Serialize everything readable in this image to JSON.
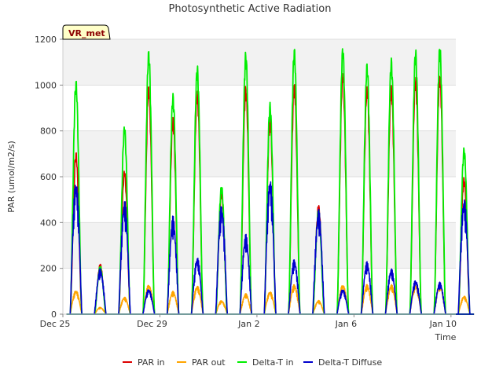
{
  "chart_data": {
    "type": "line",
    "title": "Photosynthetic Active Radiation",
    "xlabel": "Time",
    "ylabel": "PAR (umol/m2/s)",
    "xlim_days": [
      0,
      16.2
    ],
    "ylim": [
      0,
      1200
    ],
    "yticks": [
      0,
      200,
      400,
      600,
      800,
      1000,
      1200
    ],
    "xticks": [
      {
        "label": "Dec 25",
        "day": 0
      },
      {
        "label": "Dec 29",
        "day": 4
      },
      {
        "label": "Jan 2",
        "day": 8
      },
      {
        "label": "Jan 6",
        "day": 12
      },
      {
        "label": "Jan 10",
        "day": 16
      }
    ],
    "alt_bands": true,
    "site_tag": "VR_met",
    "legend_position": "bottom",
    "series": [
      {
        "name": "PAR in",
        "color": "#dd0000",
        "daily_peaks": [
          710,
          220,
          630,
          1000,
          860,
          980,
          540,
          1000,
          860,
          1010,
          480,
          1060,
          1000,
          1000,
          1040,
          1060,
          600
        ]
      },
      {
        "name": "PAR out",
        "color": "#ffa500",
        "daily_peaks": [
          105,
          30,
          75,
          130,
          100,
          125,
          60,
          90,
          100,
          130,
          60,
          130,
          130,
          130,
          130,
          130,
          80
        ]
      },
      {
        "name": "Delta-T in",
        "color": "#00ee00",
        "daily_peaks": [
          1025,
          210,
          825,
          1155,
          965,
          1090,
          565,
          1150,
          925,
          1165,
          460,
          1170,
          1100,
          1120,
          1160,
          1180,
          730
        ]
      },
      {
        "name": "Delta-T Diffuse",
        "color": "#0000cc",
        "daily_peaks": [
          590,
          200,
          500,
          110,
          430,
          250,
          480,
          350,
          600,
          240,
          460,
          110,
          230,
          200,
          150,
          140,
          510
        ]
      }
    ]
  }
}
